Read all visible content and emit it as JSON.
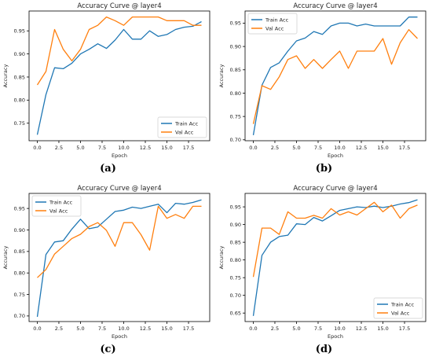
{
  "chart_data": [
    {
      "type": "line",
      "panel_label": "(a)",
      "title": "Accuracy Curve @ layer4",
      "xlabel": "Epoch",
      "ylabel": "Accuracy",
      "xlim": [
        -0.95,
        19.95
      ],
      "ylim": [
        0.712,
        0.993
      ],
      "xticks": [
        0.0,
        2.5,
        5.0,
        7.5,
        10.0,
        12.5,
        15.0,
        17.5
      ],
      "xtick_labels": [
        "0.0",
        "2.5",
        "5.0",
        "7.5",
        "10.0",
        "12.5",
        "15.0",
        "17.5"
      ],
      "yticks": [
        0.75,
        0.8,
        0.85,
        0.9,
        0.95
      ],
      "ytick_labels": [
        "0.75",
        "0.80",
        "0.85",
        "0.90",
        "0.95"
      ],
      "legend_position": "lower-right",
      "grid": false,
      "x": [
        0,
        1,
        2,
        3,
        4,
        5,
        6,
        7,
        8,
        9,
        10,
        11,
        12,
        13,
        14,
        15,
        16,
        17,
        18,
        19
      ],
      "series": [
        {
          "name": "Train Acc",
          "color": "#1f77b4",
          "values": [
            0.725,
            0.812,
            0.87,
            0.868,
            0.88,
            0.9,
            0.91,
            0.922,
            0.912,
            0.93,
            0.953,
            0.932,
            0.932,
            0.95,
            0.938,
            0.942,
            0.953,
            0.958,
            0.96,
            0.97
          ]
        },
        {
          "name": "Val Acc",
          "color": "#ff7f0e",
          "values": [
            0.833,
            0.862,
            0.953,
            0.91,
            0.885,
            0.91,
            0.953,
            0.962,
            0.98,
            0.972,
            0.962,
            0.98,
            0.98,
            0.98,
            0.98,
            0.972,
            0.972,
            0.972,
            0.962,
            0.962
          ]
        }
      ]
    },
    {
      "type": "line",
      "panel_label": "(b)",
      "title": "Accuracy Curve @ layer4",
      "xlabel": "Epoch",
      "ylabel": "Accuracy",
      "xlim": [
        -0.95,
        19.95
      ],
      "ylim": [
        0.698,
        0.976
      ],
      "xticks": [
        0.0,
        2.5,
        5.0,
        7.5,
        10.0,
        12.5,
        15.0,
        17.5
      ],
      "xtick_labels": [
        "0.0",
        "2.5",
        "5.0",
        "7.5",
        "10.0",
        "12.5",
        "15.0",
        "17.5"
      ],
      "yticks": [
        0.7,
        0.75,
        0.8,
        0.85,
        0.9,
        0.95
      ],
      "ytick_labels": [
        "0.70",
        "0.75",
        "0.80",
        "0.85",
        "0.90",
        "0.95"
      ],
      "legend_position": "upper-left",
      "grid": false,
      "x": [
        0,
        1,
        2,
        3,
        4,
        5,
        6,
        7,
        8,
        9,
        10,
        11,
        12,
        13,
        14,
        15,
        16,
        17,
        18,
        19
      ],
      "series": [
        {
          "name": "Train Acc",
          "color": "#1f77b4",
          "values": [
            0.71,
            0.817,
            0.855,
            0.865,
            0.89,
            0.912,
            0.918,
            0.932,
            0.926,
            0.944,
            0.95,
            0.95,
            0.944,
            0.948,
            0.944,
            0.944,
            0.944,
            0.944,
            0.963,
            0.963
          ]
        },
        {
          "name": "Val Acc",
          "color": "#ff7f0e",
          "values": [
            0.734,
            0.816,
            0.808,
            0.835,
            0.872,
            0.88,
            0.853,
            0.872,
            0.853,
            0.872,
            0.89,
            0.853,
            0.89,
            0.89,
            0.89,
            0.917,
            0.862,
            0.908,
            0.936,
            0.917
          ]
        }
      ]
    },
    {
      "type": "line",
      "panel_label": "(c)",
      "title": "Accuracy Curve @ layer4",
      "xlabel": "Epoch",
      "ylabel": "Accuracy",
      "xlim": [
        -0.95,
        19.95
      ],
      "ylim": [
        0.687,
        0.985
      ],
      "xticks": [
        0.0,
        2.5,
        5.0,
        7.5,
        10.0,
        12.5,
        15.0,
        17.5
      ],
      "xtick_labels": [
        "0.0",
        "2.5",
        "5.0",
        "7.5",
        "10.0",
        "12.5",
        "15.0",
        "17.5"
      ],
      "yticks": [
        0.7,
        0.75,
        0.8,
        0.85,
        0.9,
        0.95
      ],
      "ytick_labels": [
        "0.70",
        "0.75",
        "0.80",
        "0.85",
        "0.90",
        "0.95"
      ],
      "legend_position": "upper-left",
      "grid": false,
      "x": [
        0,
        1,
        2,
        3,
        4,
        5,
        6,
        7,
        8,
        9,
        10,
        11,
        12,
        13,
        14,
        15,
        16,
        17,
        18,
        19
      ],
      "series": [
        {
          "name": "Train Acc",
          "color": "#1f77b4",
          "values": [
            0.698,
            0.843,
            0.872,
            0.875,
            0.902,
            0.925,
            0.903,
            0.907,
            0.925,
            0.943,
            0.946,
            0.953,
            0.95,
            0.955,
            0.96,
            0.94,
            0.962,
            0.96,
            0.964,
            0.97
          ]
        },
        {
          "name": "Val Acc",
          "color": "#ff7f0e",
          "values": [
            0.789,
            0.808,
            0.844,
            0.862,
            0.88,
            0.89,
            0.908,
            0.917,
            0.899,
            0.862,
            0.917,
            0.917,
            0.889,
            0.853,
            0.955,
            0.927,
            0.936,
            0.927,
            0.955,
            0.955
          ]
        }
      ]
    },
    {
      "type": "line",
      "panel_label": "(d)",
      "title": "Accuracy Curve @ layer4",
      "xlabel": "Epoch",
      "ylabel": "Accuracy",
      "xlim": [
        -0.95,
        19.95
      ],
      "ylim": [
        0.626,
        0.988
      ],
      "xticks": [
        0.0,
        2.5,
        5.0,
        7.5,
        10.0,
        12.5,
        15.0,
        17.5
      ],
      "xtick_labels": [
        "0.0",
        "2.5",
        "5.0",
        "7.5",
        "10.0",
        "12.5",
        "15.0",
        "17.5"
      ],
      "yticks": [
        0.65,
        0.7,
        0.75,
        0.8,
        0.85,
        0.9,
        0.95
      ],
      "ytick_labels": [
        "0.65",
        "0.70",
        "0.75",
        "0.80",
        "0.85",
        "0.90",
        "0.95"
      ],
      "legend_position": "lower-right",
      "grid": false,
      "x": [
        0,
        1,
        2,
        3,
        4,
        5,
        6,
        7,
        8,
        9,
        10,
        11,
        12,
        13,
        14,
        15,
        16,
        17,
        18,
        19
      ],
      "series": [
        {
          "name": "Train Acc",
          "color": "#1f77b4",
          "values": [
            0.642,
            0.813,
            0.85,
            0.866,
            0.87,
            0.902,
            0.9,
            0.92,
            0.91,
            0.925,
            0.94,
            0.945,
            0.95,
            0.948,
            0.952,
            0.948,
            0.952,
            0.958,
            0.962,
            0.97
          ]
        },
        {
          "name": "Val Acc",
          "color": "#ff7f0e",
          "values": [
            0.752,
            0.89,
            0.89,
            0.872,
            0.936,
            0.918,
            0.918,
            0.926,
            0.918,
            0.945,
            0.927,
            0.936,
            0.927,
            0.945,
            0.963,
            0.936,
            0.955,
            0.918,
            0.945,
            0.955
          ]
        }
      ]
    }
  ]
}
